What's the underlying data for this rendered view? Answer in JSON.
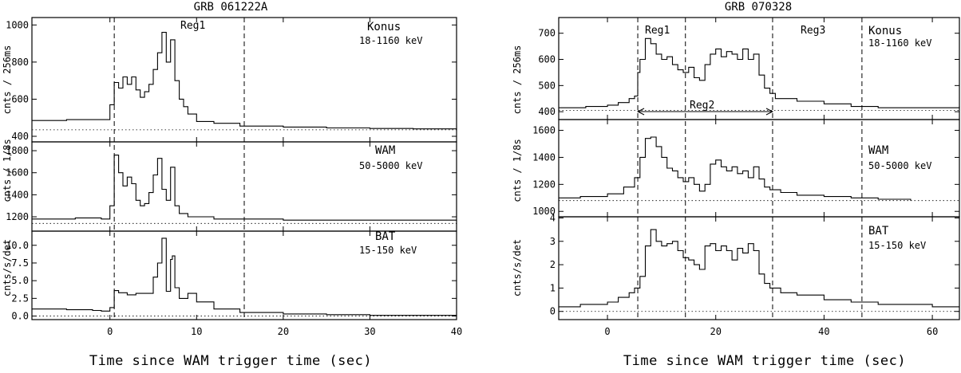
{
  "figures": [
    {
      "title": "GRB 061222A",
      "xlabel": "Time since WAM trigger time (sec)",
      "x_ticks": [
        "0",
        "10",
        "20",
        "30",
        "40"
      ],
      "region_labels": [
        "Reg1"
      ],
      "panels": [
        {
          "instrument": "Konus",
          "range": "18-1160 keV",
          "ylabel": "cnts / 256ms",
          "y_ticks": [
            "400",
            "600",
            "800",
            "1000"
          ]
        },
        {
          "instrument": "WAM",
          "range": "50-5000 keV",
          "ylabel": "cnts / 1/8s",
          "y_ticks": [
            "1200",
            "1400",
            "1600",
            "1800"
          ]
        },
        {
          "instrument": "BAT",
          "range": "15-150 keV",
          "ylabel": "cnts/s/det",
          "y_ticks": [
            "0.0",
            "2.5",
            "5.0",
            "7.5",
            "10.0"
          ]
        }
      ]
    },
    {
      "title": "GRB 070328",
      "xlabel": "Time since WAM trigger time (sec)",
      "x_ticks": [
        "0",
        "20",
        "40",
        "60"
      ],
      "region_labels": [
        "Reg1",
        "Reg3",
        "Reg2"
      ],
      "panels": [
        {
          "instrument": "Konus",
          "range": "18-1160 keV",
          "ylabel": "cnts / 256ms",
          "y_ticks": [
            "400",
            "500",
            "600",
            "700"
          ]
        },
        {
          "instrument": "WAM",
          "range": "50-5000 keV",
          "ylabel": "cnts / 1/8s",
          "y_ticks": [
            "1000",
            "1200",
            "1400",
            "1600"
          ]
        },
        {
          "instrument": "BAT",
          "range": "15-150 keV",
          "ylabel": "cnts/s/det",
          "y_ticks": [
            "0",
            "1",
            "2",
            "3",
            "4"
          ]
        }
      ]
    }
  ],
  "chart_data": [
    {
      "type": "line",
      "title": "GRB 061222A",
      "xlabel": "Time since WAM trigger time (sec)",
      "xlim": [
        -9,
        40
      ],
      "x_ticks": [
        0,
        10,
        20,
        30,
        40
      ],
      "vlines": [
        0.5,
        15.5
      ],
      "regions": [
        {
          "label": "Reg1",
          "from": 0.5,
          "to": 15.5
        }
      ],
      "panels": [
        {
          "instrument": "Konus",
          "range": "18-1160 keV",
          "ylabel": "cnts / 256ms",
          "ylim": [
            370,
            1040
          ],
          "y_ticks": [
            400,
            600,
            800,
            1000
          ],
          "baseline": 435,
          "series": {
            "x": [
              -9,
              -5,
              -1,
              0,
              0.5,
              1,
              1.5,
              2,
              2.5,
              3,
              3.5,
              4,
              4.5,
              5,
              5.5,
              6,
              6.5,
              7,
              7.5,
              8,
              8.5,
              9,
              10,
              12,
              15,
              20,
              25,
              30,
              35,
              40
            ],
            "y": [
              485,
              490,
              490,
              570,
              690,
              660,
              720,
              680,
              720,
              650,
              610,
              640,
              680,
              760,
              850,
              960,
              800,
              920,
              700,
              600,
              560,
              520,
              480,
              470,
              455,
              450,
              445,
              442,
              440,
              438
            ]
          }
        },
        {
          "instrument": "WAM",
          "range": "50-5000 keV",
          "ylabel": "cnts / 1/8s",
          "ylim": [
            1070,
            1880
          ],
          "y_ticks": [
            1200,
            1400,
            1600,
            1800
          ],
          "baseline": 1140,
          "series": {
            "x": [
              -9,
              -4,
              -1,
              0,
              0.5,
              1,
              1.5,
              2,
              2.5,
              3,
              3.5,
              4,
              4.5,
              5,
              5.5,
              6,
              6.5,
              7,
              7.5,
              8,
              9,
              12,
              20,
              30,
              40
            ],
            "y": [
              1180,
              1190,
              1180,
              1300,
              1760,
              1600,
              1480,
              1560,
              1500,
              1350,
              1300,
              1320,
              1420,
              1580,
              1730,
              1450,
              1350,
              1650,
              1300,
              1230,
              1200,
              1180,
              1170,
              1170,
              1160
            ]
          }
        },
        {
          "instrument": "BAT",
          "range": "15-150 keV",
          "ylabel": "cnts/s/det",
          "ylim": [
            -0.5,
            12
          ],
          "y_ticks": [
            0,
            2.5,
            5,
            7.5,
            10
          ],
          "baseline": 0,
          "series": {
            "x": [
              -9,
              -5,
              -2,
              -1,
              0,
              0.5,
              1,
              2,
              3,
              4,
              5,
              5.5,
              6,
              6.5,
              7,
              7.2,
              7.5,
              8,
              9,
              10,
              12,
              15,
              20,
              25,
              30,
              40
            ],
            "y": [
              1.0,
              0.9,
              0.8,
              0.7,
              1.2,
              3.6,
              3.3,
              3.0,
              3.2,
              3.2,
              5.5,
              7.5,
              11.0,
              3.5,
              8.0,
              8.5,
              4.0,
              2.5,
              3.2,
              2.0,
              1.0,
              0.5,
              0.3,
              0.2,
              0.1,
              0.05
            ]
          }
        }
      ]
    },
    {
      "type": "line",
      "title": "GRB 070328",
      "xlabel": "Time since WAM trigger time (sec)",
      "xlim": [
        -9,
        65
      ],
      "x_ticks": [
        0,
        20,
        40,
        60
      ],
      "vlines": [
        5.6,
        14.4,
        30.5,
        47
      ],
      "regions": [
        {
          "label": "Reg1",
          "from": 5.6,
          "to": 14.4
        },
        {
          "label": "Reg2",
          "from": 5.6,
          "to": 30.5
        },
        {
          "label": "Reg3",
          "from": 30.5,
          "to": 47
        }
      ],
      "panels": [
        {
          "instrument": "Konus",
          "range": "18-1160 keV",
          "ylabel": "cnts / 256ms",
          "ylim": [
            370,
            760
          ],
          "y_ticks": [
            400,
            500,
            600,
            700
          ],
          "baseline": 405,
          "series": {
            "x": [
              -9,
              -4,
              0,
              2,
              4,
              5,
              5.6,
              6,
              7,
              8,
              9,
              10,
              11,
              12,
              13,
              14,
              15,
              16,
              17,
              18,
              19,
              20,
              21,
              22,
              23,
              24,
              25,
              26,
              27,
              28,
              29,
              30,
              31,
              35,
              40,
              45,
              50,
              55,
              60,
              65
            ],
            "y": [
              415,
              420,
              425,
              435,
              450,
              460,
              550,
              600,
              680,
              660,
              620,
              600,
              610,
              580,
              560,
              550,
              570,
              530,
              520,
              580,
              620,
              640,
              610,
              630,
              620,
              600,
              640,
              600,
              620,
              540,
              490,
              470,
              450,
              440,
              430,
              420,
              415,
              415,
              415,
              420
            ]
          }
        },
        {
          "instrument": "WAM",
          "range": "50-5000 keV",
          "ylabel": "cnts / 1/8s",
          "ylim": [
            960,
            1680
          ],
          "y_ticks": [
            1000,
            1200,
            1400,
            1600
          ],
          "baseline": 1080,
          "series": {
            "x": [
              -9,
              -5,
              0,
              3,
              5,
              6,
              7,
              8,
              9,
              10,
              11,
              12,
              13,
              14,
              15,
              16,
              17,
              18,
              19,
              20,
              21,
              22,
              23,
              24,
              25,
              26,
              27,
              28,
              29,
              30,
              32,
              35,
              40,
              45,
              50,
              55,
              56
            ],
            "y": [
              1100,
              1110,
              1130,
              1180,
              1250,
              1400,
              1540,
              1550,
              1480,
              1400,
              1320,
              1300,
              1250,
              1220,
              1250,
              1200,
              1150,
              1200,
              1350,
              1380,
              1330,
              1300,
              1330,
              1280,
              1300,
              1250,
              1330,
              1240,
              1180,
              1160,
              1140,
              1120,
              1110,
              1100,
              1090,
              1090,
              1080
            ]
          }
        },
        {
          "instrument": "BAT",
          "range": "15-150 keV",
          "ylabel": "cnts/s/det",
          "ylim": [
            -0.35,
            4.05
          ],
          "y_ticks": [
            0,
            1,
            2,
            3,
            4
          ],
          "baseline": 0,
          "series": {
            "x": [
              -9,
              -5,
              0,
              2,
              4,
              5,
              6,
              7,
              8,
              9,
              10,
              11,
              12,
              13,
              14,
              15,
              16,
              17,
              18,
              19,
              20,
              21,
              22,
              23,
              24,
              25,
              26,
              27,
              28,
              29,
              30,
              32,
              35,
              40,
              45,
              50,
              55,
              60,
              65
            ],
            "y": [
              0.2,
              0.3,
              0.4,
              0.6,
              0.8,
              1.0,
              1.5,
              2.8,
              3.5,
              3.0,
              2.8,
              2.9,
              3.0,
              2.6,
              2.3,
              2.2,
              2.0,
              1.8,
              2.8,
              2.9,
              2.6,
              2.8,
              2.6,
              2.2,
              2.7,
              2.5,
              2.9,
              2.6,
              1.6,
              1.2,
              1.0,
              0.8,
              0.7,
              0.5,
              0.4,
              0.3,
              0.3,
              0.2,
              0.2
            ]
          }
        }
      ]
    }
  ]
}
